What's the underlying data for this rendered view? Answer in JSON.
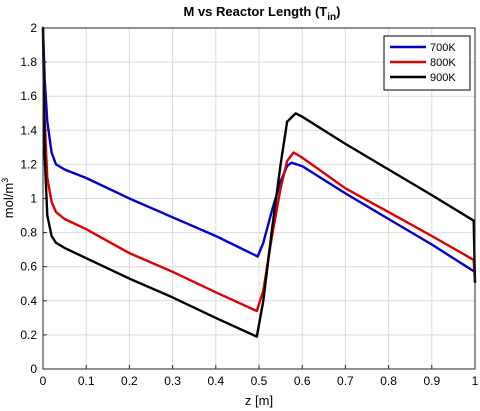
{
  "chart_data": {
    "type": "line",
    "title": "M vs Reactor Length (T",
    "title_subscript": "in",
    "title_suffix": ")",
    "xlabel": "z [m]",
    "ylabel": "mol/m",
    "ylabel_superscript": "3",
    "xlim": [
      0,
      1
    ],
    "ylim": [
      0,
      2
    ],
    "xticks": [
      0,
      0.1,
      0.2,
      0.3,
      0.4,
      0.5,
      0.6,
      0.7,
      0.8,
      0.9,
      1
    ],
    "xtick_labels": [
      "0",
      "0.1",
      "0.2",
      "0.3",
      "0.4",
      "0.5",
      "0.6",
      "0.7",
      "0.8",
      "0.9",
      "1"
    ],
    "yticks": [
      0,
      0.2,
      0.4,
      0.6,
      0.8,
      1,
      1.2,
      1.4,
      1.6,
      1.8,
      2
    ],
    "ytick_labels": [
      "0",
      "0.2",
      "0.4",
      "0.6",
      "0.8",
      "1",
      "1.2",
      "1.4",
      "1.6",
      "1.8",
      "2"
    ],
    "grid": true,
    "legend_position": "top-right",
    "series": [
      {
        "name": "700K",
        "color": "#0000cc",
        "x": [
          0,
          0.004,
          0.01,
          0.02,
          0.03,
          0.05,
          0.1,
          0.2,
          0.3,
          0.4,
          0.497,
          0.51,
          0.53,
          0.55,
          0.565,
          0.575,
          0.6,
          0.7,
          0.8,
          0.9,
          0.999
        ],
        "y": [
          2.0,
          1.7,
          1.45,
          1.27,
          1.2,
          1.17,
          1.12,
          1.0,
          0.89,
          0.78,
          0.66,
          0.74,
          0.93,
          1.1,
          1.19,
          1.21,
          1.19,
          1.03,
          0.88,
          0.73,
          0.57
        ]
      },
      {
        "name": "800K",
        "color": "#dd0000",
        "x": [
          0,
          0.004,
          0.01,
          0.02,
          0.03,
          0.05,
          0.1,
          0.2,
          0.3,
          0.4,
          0.495,
          0.51,
          0.53,
          0.55,
          0.565,
          0.58,
          0.6,
          0.7,
          0.8,
          0.9,
          0.997,
          1.0
        ],
        "y": [
          2.0,
          1.45,
          1.12,
          0.98,
          0.92,
          0.88,
          0.82,
          0.68,
          0.57,
          0.45,
          0.34,
          0.46,
          0.78,
          1.06,
          1.22,
          1.27,
          1.24,
          1.06,
          0.92,
          0.78,
          0.64,
          0.51
        ]
      },
      {
        "name": "900K",
        "color": "#000000",
        "x": [
          0,
          0.004,
          0.01,
          0.02,
          0.03,
          0.05,
          0.1,
          0.2,
          0.3,
          0.4,
          0.495,
          0.51,
          0.53,
          0.55,
          0.565,
          0.585,
          0.6,
          0.7,
          0.8,
          0.9,
          0.997,
          1.0
        ],
        "y": [
          2.0,
          1.25,
          0.9,
          0.78,
          0.74,
          0.71,
          0.65,
          0.53,
          0.42,
          0.3,
          0.19,
          0.4,
          0.82,
          1.2,
          1.45,
          1.5,
          1.48,
          1.32,
          1.17,
          1.02,
          0.87,
          0.51
        ]
      }
    ]
  }
}
